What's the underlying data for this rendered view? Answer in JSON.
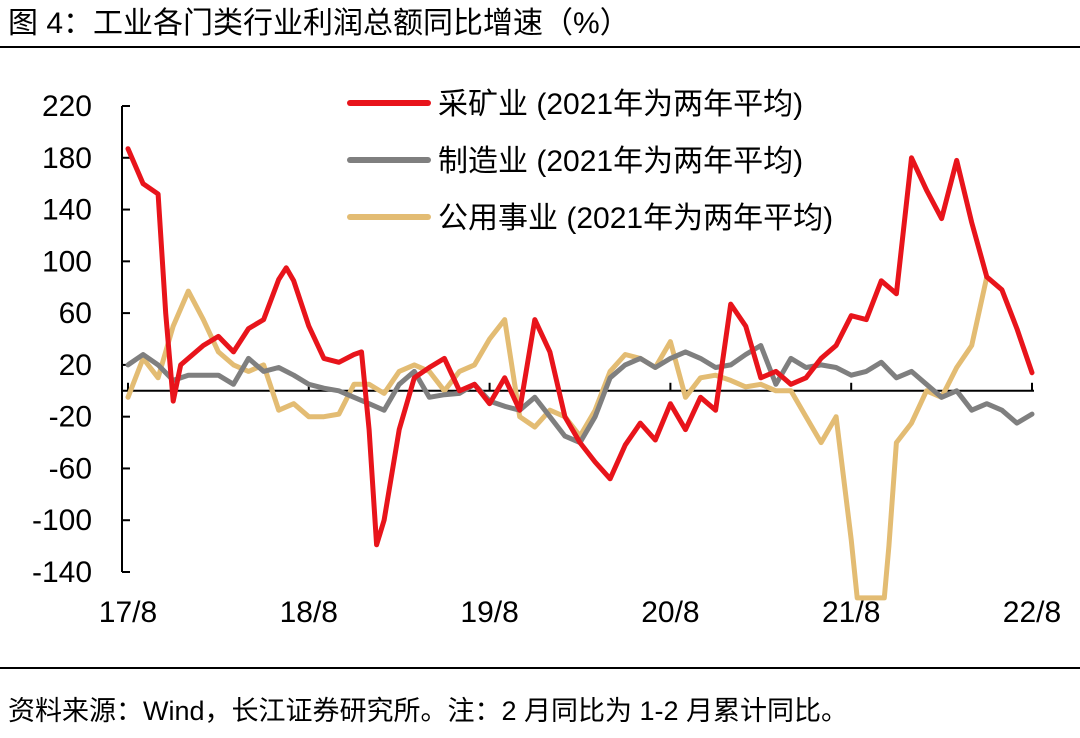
{
  "title": "图 4：工业各门类行业利润总额同比增速（%）",
  "source": "资料来源：Wind，长江证券研究所。注：2 月同比为 1-2 月累计同比。",
  "chart_data": {
    "type": "line",
    "title": "图 4：工业各门类行业利润总额同比增速（%）",
    "xlabel": "",
    "ylabel": "",
    "ylim": [
      -140,
      220
    ],
    "yticks": [
      220,
      180,
      140,
      100,
      60,
      20,
      -20,
      -60,
      -100,
      -140
    ],
    "xtick_labels": [
      "17/8",
      "18/8",
      "19/8",
      "20/8",
      "21/8",
      "22/8"
    ],
    "x_range": [
      0,
      60
    ],
    "x_ticks_at": [
      0,
      12,
      24,
      36,
      48,
      60
    ],
    "legend_position": "top-right",
    "series": [
      {
        "name": "采矿业 (2021年为两年平均)",
        "color": "#e8141b",
        "points": [
          [
            0,
            187
          ],
          [
            1,
            160
          ],
          [
            2,
            152
          ],
          [
            2.5,
            60
          ],
          [
            3,
            -8
          ],
          [
            3.5,
            20
          ],
          [
            5,
            35
          ],
          [
            6,
            42
          ],
          [
            7,
            30
          ],
          [
            8,
            48
          ],
          [
            9,
            55
          ],
          [
            10,
            86
          ],
          [
            10.5,
            95
          ],
          [
            11,
            85
          ],
          [
            12,
            50
          ],
          [
            13,
            25
          ],
          [
            14,
            22
          ],
          [
            15,
            28
          ],
          [
            15.5,
            30
          ],
          [
            16,
            -30
          ],
          [
            16.5,
            -119
          ],
          [
            17,
            -100
          ],
          [
            18,
            -30
          ],
          [
            19,
            10
          ],
          [
            20,
            18
          ],
          [
            21,
            25
          ],
          [
            22,
            0
          ],
          [
            23,
            5
          ],
          [
            24,
            -10
          ],
          [
            25,
            10
          ],
          [
            26,
            -15
          ],
          [
            27,
            55
          ],
          [
            28,
            30
          ],
          [
            29,
            -20
          ],
          [
            30,
            -40
          ],
          [
            31,
            -55
          ],
          [
            32,
            -68
          ],
          [
            33,
            -42
          ],
          [
            34,
            -25
          ],
          [
            35,
            -38
          ],
          [
            36,
            -10
          ],
          [
            37,
            -30
          ],
          [
            38,
            -5
          ],
          [
            39,
            -15
          ],
          [
            40,
            67
          ],
          [
            41,
            50
          ],
          [
            42,
            10
          ],
          [
            43,
            15
          ],
          [
            44,
            5
          ],
          [
            45,
            10
          ],
          [
            46,
            25
          ],
          [
            47,
            35
          ],
          [
            48,
            58
          ],
          [
            49,
            55
          ],
          [
            50,
            85
          ],
          [
            51,
            75
          ],
          [
            52,
            180
          ],
          [
            53,
            155
          ],
          [
            54,
            133
          ],
          [
            55,
            178
          ],
          [
            56,
            130
          ],
          [
            57,
            88
          ],
          [
            58,
            78
          ],
          [
            59,
            48
          ],
          [
            60,
            14
          ]
        ]
      },
      {
        "name": "制造业 (2021年为两年平均)",
        "color": "#7f7f7f",
        "points": [
          [
            0,
            20
          ],
          [
            1,
            28
          ],
          [
            2,
            20
          ],
          [
            3,
            8
          ],
          [
            4,
            12
          ],
          [
            5,
            12
          ],
          [
            6,
            12
          ],
          [
            7,
            5
          ],
          [
            8,
            25
          ],
          [
            9,
            15
          ],
          [
            10,
            18
          ],
          [
            11,
            12
          ],
          [
            12,
            5
          ],
          [
            13,
            2
          ],
          [
            14,
            0
          ],
          [
            15,
            -5
          ],
          [
            16,
            -10
          ],
          [
            17,
            -15
          ],
          [
            18,
            5
          ],
          [
            19,
            15
          ],
          [
            20,
            -5
          ],
          [
            21,
            -3
          ],
          [
            22,
            -2
          ],
          [
            23,
            5
          ],
          [
            24,
            -8
          ],
          [
            25,
            -12
          ],
          [
            26,
            -15
          ],
          [
            27,
            -5
          ],
          [
            28,
            -20
          ],
          [
            29,
            -35
          ],
          [
            30,
            -40
          ],
          [
            31,
            -20
          ],
          [
            32,
            10
          ],
          [
            33,
            20
          ],
          [
            34,
            25
          ],
          [
            35,
            18
          ],
          [
            36,
            25
          ],
          [
            37,
            30
          ],
          [
            38,
            25
          ],
          [
            39,
            18
          ],
          [
            40,
            20
          ],
          [
            41,
            28
          ],
          [
            42,
            35
          ],
          [
            43,
            5
          ],
          [
            44,
            25
          ],
          [
            45,
            18
          ],
          [
            46,
            20
          ],
          [
            47,
            18
          ],
          [
            48,
            12
          ],
          [
            49,
            15
          ],
          [
            50,
            22
          ],
          [
            51,
            10
          ],
          [
            52,
            15
          ],
          [
            53,
            5
          ],
          [
            54,
            -5
          ],
          [
            55,
            0
          ],
          [
            56,
            -15
          ],
          [
            57,
            -10
          ],
          [
            58,
            -15
          ],
          [
            59,
            -25
          ],
          [
            60,
            -18
          ]
        ]
      },
      {
        "name": "公用事业 (2021年为两年平均)",
        "color": "#e3bc73",
        "points": [
          [
            0,
            -5
          ],
          [
            1,
            25
          ],
          [
            2,
            10
          ],
          [
            3,
            50
          ],
          [
            4,
            77
          ],
          [
            5,
            55
          ],
          [
            6,
            30
          ],
          [
            7,
            20
          ],
          [
            8,
            15
          ],
          [
            9,
            20
          ],
          [
            10,
            -15
          ],
          [
            11,
            -10
          ],
          [
            12,
            -20
          ],
          [
            13,
            -20
          ],
          [
            14,
            -18
          ],
          [
            15,
            5
          ],
          [
            16,
            5
          ],
          [
            17,
            -2
          ],
          [
            18,
            15
          ],
          [
            19,
            20
          ],
          [
            20,
            15
          ],
          [
            21,
            0
          ],
          [
            22,
            15
          ],
          [
            23,
            20
          ],
          [
            24,
            40
          ],
          [
            25,
            55
          ],
          [
            26,
            -20
          ],
          [
            27,
            -28
          ],
          [
            28,
            -15
          ],
          [
            29,
            -20
          ],
          [
            30,
            -35
          ],
          [
            31,
            -15
          ],
          [
            32,
            15
          ],
          [
            33,
            28
          ],
          [
            34,
            25
          ],
          [
            35,
            18
          ],
          [
            36,
            38
          ],
          [
            37,
            -5
          ],
          [
            38,
            10
          ],
          [
            39,
            12
          ],
          [
            40,
            8
          ],
          [
            41,
            3
          ],
          [
            42,
            5
          ],
          [
            43,
            0
          ],
          [
            44,
            0
          ],
          [
            45,
            -20
          ],
          [
            46,
            -40
          ],
          [
            47,
            -20
          ],
          [
            48,
            -115
          ],
          [
            48.4,
            -160
          ],
          [
            50.2,
            -160
          ],
          [
            50.5,
            -120
          ],
          [
            51,
            -40
          ],
          [
            52,
            -25
          ],
          [
            53,
            0
          ],
          [
            54,
            -5
          ],
          [
            55,
            18
          ],
          [
            56,
            35
          ],
          [
            57,
            88
          ]
        ]
      }
    ]
  }
}
